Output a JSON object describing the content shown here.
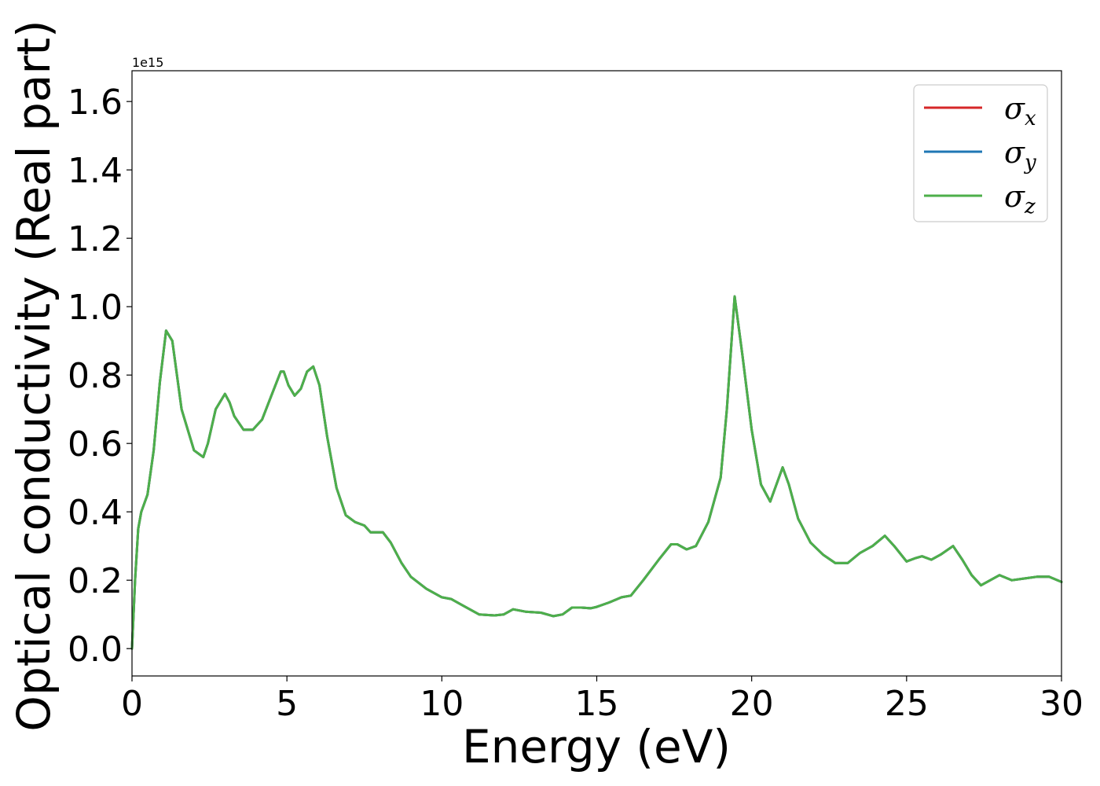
{
  "chart_data": {
    "type": "line",
    "xlabel": "Energy (eV)",
    "ylabel": "Optical conductivity (Real part)",
    "y_offset_label": "1e15",
    "xlim": [
      0,
      30
    ],
    "ylim": [
      -0.08,
      1.69
    ],
    "x_ticks": [
      0,
      5,
      10,
      15,
      20,
      25,
      30
    ],
    "x_tick_labels": [
      "0",
      "5",
      "10",
      "15",
      "20",
      "25",
      "30"
    ],
    "y_ticks": [
      0.0,
      0.2,
      0.4,
      0.6,
      0.8,
      1.0,
      1.2,
      1.4,
      1.6
    ],
    "y_tick_labels": [
      "0.0",
      "0.2",
      "0.4",
      "0.6",
      "0.8",
      "1.0",
      "1.2",
      "1.4",
      "1.6"
    ],
    "grid": false,
    "legend_position": "top-right",
    "x": [
      0,
      0.1,
      0.2,
      0.3,
      0.5,
      0.7,
      0.9,
      1.1,
      1.3,
      1.45,
      1.6,
      1.8,
      2.0,
      2.3,
      2.45,
      2.7,
      3.0,
      3.15,
      3.3,
      3.6,
      3.9,
      4.2,
      4.5,
      4.8,
      4.9,
      5.05,
      5.25,
      5.45,
      5.65,
      5.85,
      6.05,
      6.3,
      6.6,
      6.9,
      7.2,
      7.5,
      7.7,
      7.9,
      8.1,
      8.35,
      8.7,
      9.0,
      9.5,
      10.0,
      10.3,
      10.7,
      11.2,
      11.7,
      12.0,
      12.3,
      12.7,
      13.2,
      13.6,
      13.9,
      14.2,
      14.5,
      14.8,
      15.0,
      15.4,
      15.8,
      16.1,
      16.5,
      17.0,
      17.4,
      17.6,
      17.9,
      18.2,
      18.6,
      19.0,
      19.2,
      19.45,
      19.7,
      20.0,
      20.3,
      20.6,
      20.8,
      21.0,
      21.2,
      21.5,
      21.9,
      22.3,
      22.7,
      23.1,
      23.5,
      23.9,
      24.3,
      24.6,
      25.0,
      25.3,
      25.5,
      25.8,
      26.1,
      26.5,
      26.8,
      27.1,
      27.4,
      27.7,
      28.0,
      28.4,
      28.8,
      29.2,
      29.6,
      30.0
    ],
    "series": [
      {
        "name": "σx",
        "color": "#d62728",
        "values": [
          0.0,
          0.2,
          0.35,
          0.4,
          0.45,
          0.58,
          0.78,
          0.93,
          0.9,
          0.8,
          0.7,
          0.64,
          0.58,
          0.56,
          0.6,
          0.7,
          0.745,
          0.72,
          0.68,
          0.64,
          0.64,
          0.67,
          0.74,
          0.81,
          0.81,
          0.77,
          0.74,
          0.76,
          0.81,
          0.825,
          0.77,
          0.62,
          0.47,
          0.39,
          0.37,
          0.36,
          0.34,
          0.34,
          0.34,
          0.31,
          0.25,
          0.21,
          0.175,
          0.15,
          0.145,
          0.125,
          0.1,
          0.097,
          0.1,
          0.115,
          0.108,
          0.105,
          0.095,
          0.1,
          0.12,
          0.12,
          0.118,
          0.122,
          0.135,
          0.15,
          0.155,
          0.2,
          0.26,
          0.305,
          0.305,
          0.29,
          0.3,
          0.37,
          0.5,
          0.7,
          1.03,
          0.86,
          0.64,
          0.48,
          0.43,
          0.48,
          0.53,
          0.48,
          0.38,
          0.31,
          0.275,
          0.25,
          0.25,
          0.28,
          0.3,
          0.33,
          0.3,
          0.255,
          0.265,
          0.27,
          0.26,
          0.275,
          0.3,
          0.26,
          0.215,
          0.185,
          0.2,
          0.215,
          0.2,
          0.205,
          0.21,
          0.21,
          0.195
        ]
      },
      {
        "name": "σy",
        "color": "#1f77b4",
        "values": [
          0.0,
          0.2,
          0.35,
          0.4,
          0.45,
          0.58,
          0.78,
          0.93,
          0.9,
          0.8,
          0.7,
          0.64,
          0.58,
          0.56,
          0.6,
          0.7,
          0.745,
          0.72,
          0.68,
          0.64,
          0.64,
          0.67,
          0.74,
          0.81,
          0.81,
          0.77,
          0.74,
          0.76,
          0.81,
          0.825,
          0.77,
          0.62,
          0.47,
          0.39,
          0.37,
          0.36,
          0.34,
          0.34,
          0.34,
          0.31,
          0.25,
          0.21,
          0.175,
          0.15,
          0.145,
          0.125,
          0.1,
          0.097,
          0.1,
          0.115,
          0.108,
          0.105,
          0.095,
          0.1,
          0.12,
          0.12,
          0.118,
          0.122,
          0.135,
          0.15,
          0.155,
          0.2,
          0.26,
          0.305,
          0.305,
          0.29,
          0.3,
          0.37,
          0.5,
          0.7,
          1.03,
          0.86,
          0.64,
          0.48,
          0.43,
          0.48,
          0.53,
          0.48,
          0.38,
          0.31,
          0.275,
          0.25,
          0.25,
          0.28,
          0.3,
          0.33,
          0.3,
          0.255,
          0.265,
          0.27,
          0.26,
          0.275,
          0.3,
          0.26,
          0.215,
          0.185,
          0.2,
          0.215,
          0.2,
          0.205,
          0.21,
          0.21,
          0.195
        ]
      },
      {
        "name": "σz",
        "color": "#4daf4a",
        "values": [
          0.0,
          0.2,
          0.35,
          0.4,
          0.45,
          0.58,
          0.78,
          0.93,
          0.9,
          0.8,
          0.7,
          0.64,
          0.58,
          0.56,
          0.6,
          0.7,
          0.745,
          0.72,
          0.68,
          0.64,
          0.64,
          0.67,
          0.74,
          0.81,
          0.81,
          0.77,
          0.74,
          0.76,
          0.81,
          0.825,
          0.77,
          0.62,
          0.47,
          0.39,
          0.37,
          0.36,
          0.34,
          0.34,
          0.34,
          0.31,
          0.25,
          0.21,
          0.175,
          0.15,
          0.145,
          0.125,
          0.1,
          0.097,
          0.1,
          0.115,
          0.108,
          0.105,
          0.095,
          0.1,
          0.12,
          0.12,
          0.118,
          0.122,
          0.135,
          0.15,
          0.155,
          0.2,
          0.26,
          0.305,
          0.305,
          0.29,
          0.3,
          0.37,
          0.5,
          0.7,
          1.03,
          0.86,
          0.64,
          0.48,
          0.43,
          0.48,
          0.53,
          0.48,
          0.38,
          0.31,
          0.275,
          0.25,
          0.25,
          0.28,
          0.3,
          0.33,
          0.3,
          0.255,
          0.265,
          0.27,
          0.26,
          0.275,
          0.3,
          0.26,
          0.215,
          0.185,
          0.2,
          0.215,
          0.2,
          0.205,
          0.21,
          0.21,
          0.195
        ]
      }
    ],
    "legend": [
      {
        "symbol": "σ",
        "sub": "x",
        "color": "#d62728"
      },
      {
        "symbol": "σ",
        "sub": "y",
        "color": "#1f77b4"
      },
      {
        "symbol": "σ",
        "sub": "z",
        "color": "#4daf4a"
      }
    ]
  }
}
